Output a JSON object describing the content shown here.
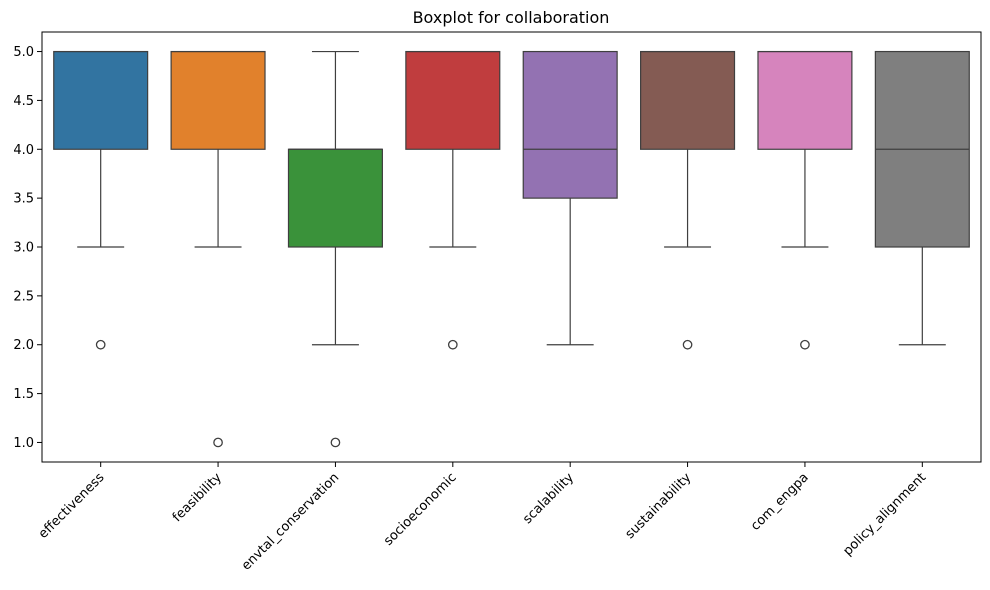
{
  "chart_data": {
    "type": "boxplot",
    "title": "Boxplot for collaboration",
    "xlabel": "",
    "ylabel": "",
    "ylim": [
      0.8,
      5.2
    ],
    "yticks": [
      1.0,
      1.5,
      2.0,
      2.5,
      3.0,
      3.5,
      4.0,
      4.5,
      5.0
    ],
    "ytick_labels": [
      "1.0",
      "1.5",
      "2.0",
      "2.5",
      "3.0",
      "3.5",
      "4.0",
      "4.5",
      "5.0"
    ],
    "grid": false,
    "categories": [
      "effectiveness",
      "feasibility",
      "envtal_conservation",
      "socioeconomic",
      "scalability",
      "sustainability",
      "com_engpa",
      "policy_alignment"
    ],
    "boxes": [
      {
        "category": "effectiveness",
        "color": "#3274a1",
        "whisker_low": 3.0,
        "q1": 4.0,
        "median": 5.0,
        "q3": 5.0,
        "whisker_high": 5.0,
        "outliers": [
          2.0
        ]
      },
      {
        "category": "feasibility",
        "color": "#e1812c",
        "whisker_low": 3.0,
        "q1": 4.0,
        "median": 5.0,
        "q3": 5.0,
        "whisker_high": 5.0,
        "outliers": [
          1.0
        ]
      },
      {
        "category": "envtal_conservation",
        "color": "#3a923a",
        "whisker_low": 2.0,
        "q1": 3.0,
        "median": 4.0,
        "q3": 4.0,
        "whisker_high": 5.0,
        "outliers": [
          1.0
        ]
      },
      {
        "category": "socioeconomic",
        "color": "#c03d3e",
        "whisker_low": 3.0,
        "q1": 4.0,
        "median": 5.0,
        "q3": 5.0,
        "whisker_high": 5.0,
        "outliers": [
          2.0
        ]
      },
      {
        "category": "scalability",
        "color": "#9372b2",
        "whisker_low": 2.0,
        "q1": 3.5,
        "median": 4.0,
        "q3": 5.0,
        "whisker_high": 5.0,
        "outliers": []
      },
      {
        "category": "sustainability",
        "color": "#845b53",
        "whisker_low": 3.0,
        "q1": 4.0,
        "median": 5.0,
        "q3": 5.0,
        "whisker_high": 5.0,
        "outliers": [
          2.0
        ]
      },
      {
        "category": "com_engpa",
        "color": "#d684bd",
        "whisker_low": 3.0,
        "q1": 4.0,
        "median": 5.0,
        "q3": 5.0,
        "whisker_high": 5.0,
        "outliers": [
          2.0
        ]
      },
      {
        "category": "policy_alignment",
        "color": "#7f7f7f",
        "whisker_low": 2.0,
        "q1": 3.0,
        "median": 4.0,
        "q3": 5.0,
        "whisker_high": 5.0,
        "outliers": []
      }
    ]
  }
}
